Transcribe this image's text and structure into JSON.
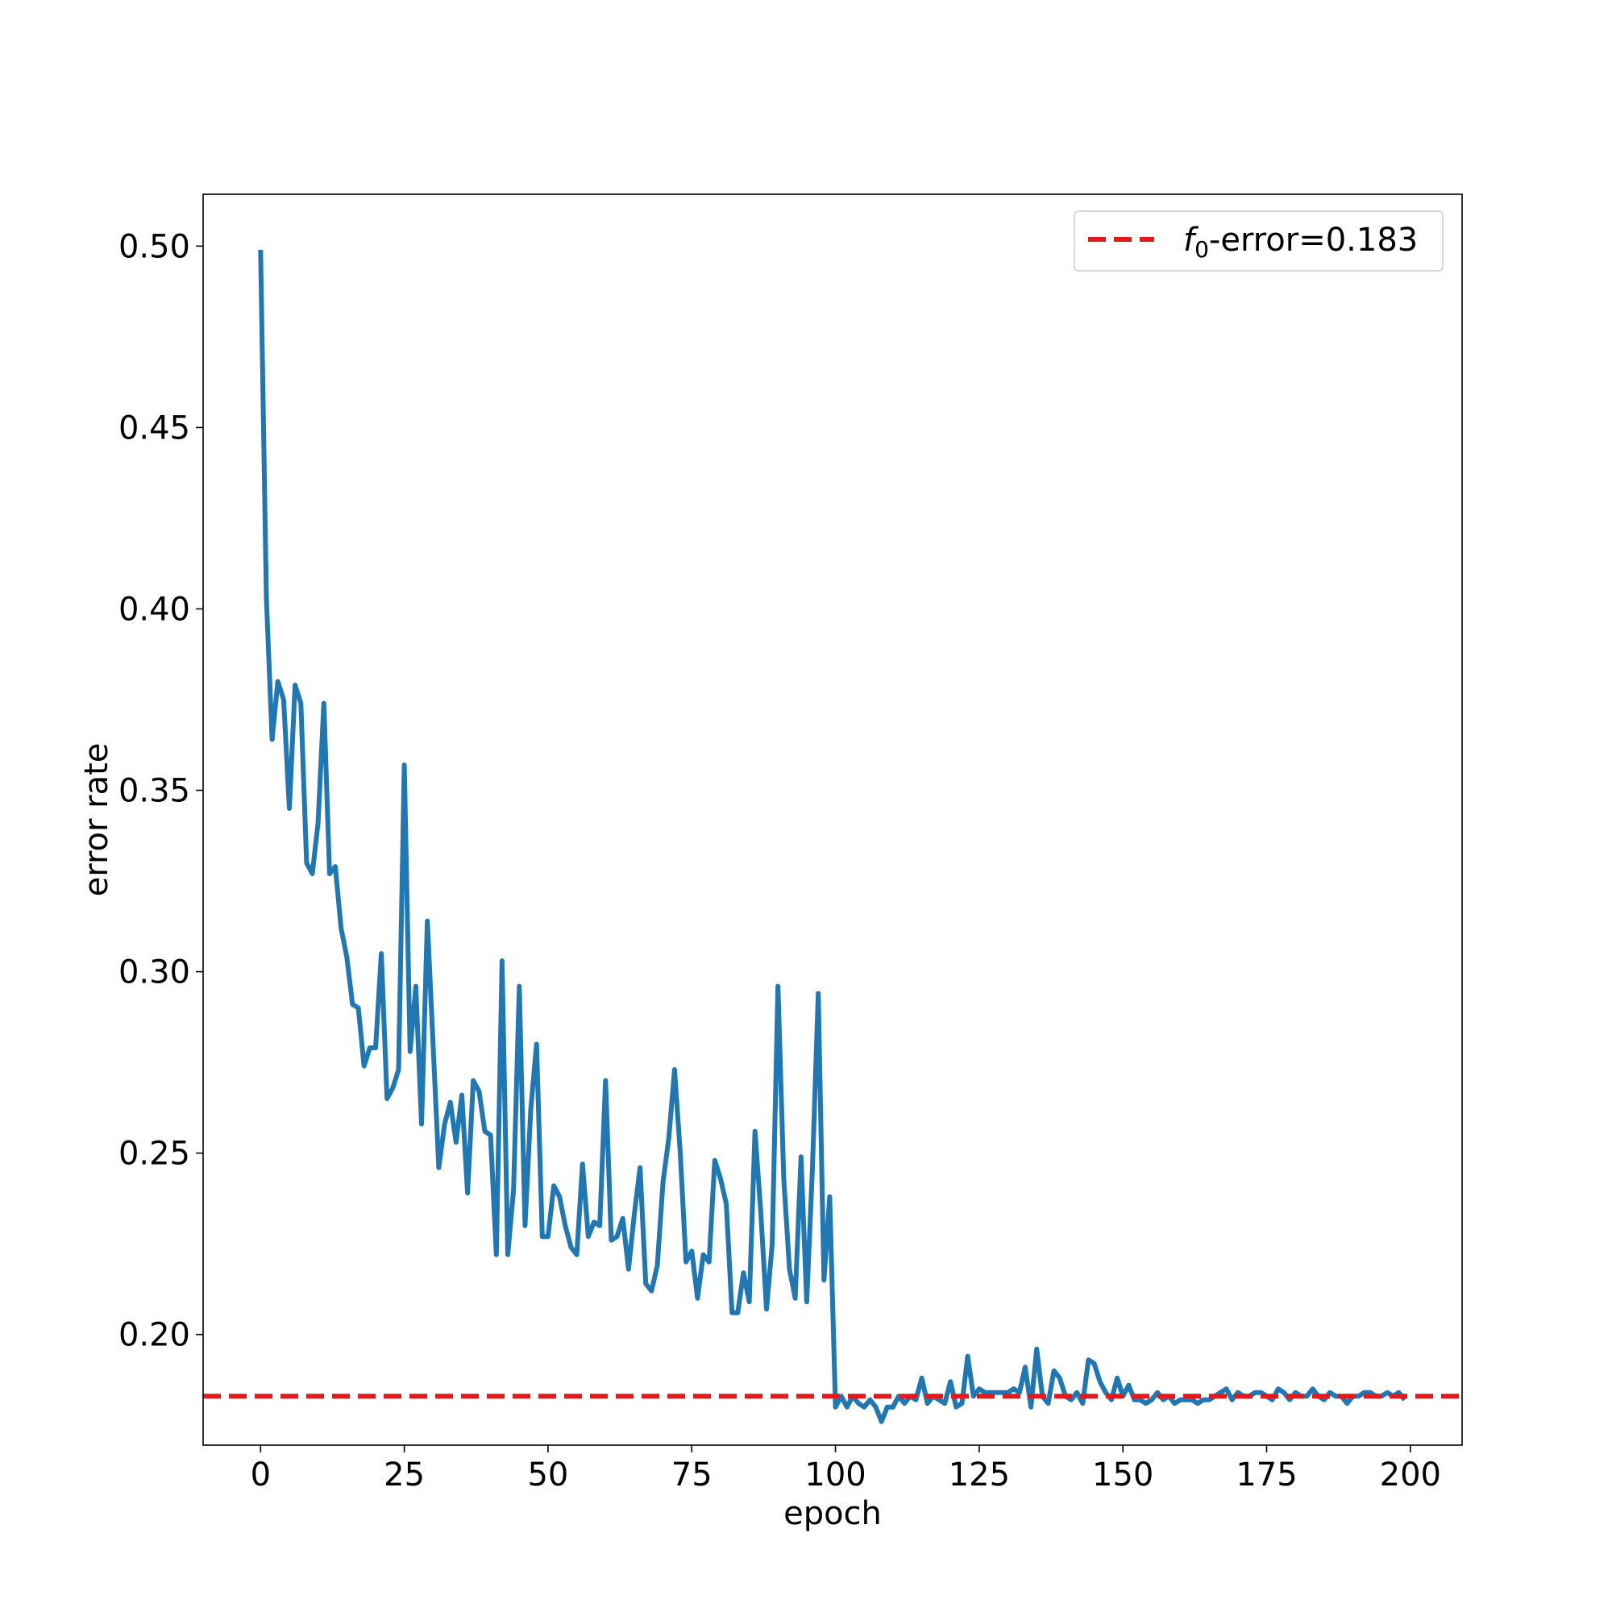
{
  "chart_data": {
    "type": "line",
    "title": "",
    "xlabel": "epoch",
    "ylabel": "error rate",
    "xlim": [
      -10,
      209
    ],
    "ylim": [
      0.1695,
      0.5143
    ],
    "xticks": [
      0,
      25,
      50,
      75,
      100,
      125,
      150,
      175,
      200
    ],
    "yticks": [
      0.2,
      0.25,
      0.3,
      0.35,
      0.4,
      0.45,
      0.5
    ],
    "ytick_format": 2,
    "grid": false,
    "legend_position": "top-right",
    "series": [
      {
        "name": "",
        "color": "#1f77b4",
        "style": "solid",
        "x": [
          0,
          1,
          2,
          3,
          4,
          5,
          6,
          7,
          8,
          9,
          10,
          11,
          12,
          13,
          14,
          15,
          16,
          17,
          18,
          19,
          20,
          21,
          22,
          23,
          24,
          25,
          26,
          27,
          28,
          29,
          30,
          31,
          32,
          33,
          34,
          35,
          36,
          37,
          38,
          39,
          40,
          41,
          42,
          43,
          44,
          45,
          46,
          47,
          48,
          49,
          50,
          51,
          52,
          53,
          54,
          55,
          56,
          57,
          58,
          59,
          60,
          61,
          62,
          63,
          64,
          65,
          66,
          67,
          68,
          69,
          70,
          71,
          72,
          73,
          74,
          75,
          76,
          77,
          78,
          79,
          80,
          81,
          82,
          83,
          84,
          85,
          86,
          87,
          88,
          89,
          90,
          91,
          92,
          93,
          94,
          95,
          96,
          97,
          98,
          99,
          100,
          101,
          102,
          103,
          104,
          105,
          106,
          107,
          108,
          109,
          110,
          111,
          112,
          113,
          114,
          115,
          116,
          117,
          118,
          119,
          120,
          121,
          122,
          123,
          124,
          125,
          126,
          127,
          128,
          129,
          130,
          131,
          132,
          133,
          134,
          135,
          136,
          137,
          138,
          139,
          140,
          141,
          142,
          143,
          144,
          145,
          146,
          147,
          148,
          149,
          150,
          151,
          152,
          153,
          154,
          155,
          156,
          157,
          158,
          159,
          160,
          161,
          162,
          163,
          164,
          165,
          166,
          167,
          168,
          169,
          170,
          171,
          172,
          173,
          174,
          175,
          176,
          177,
          178,
          179,
          180,
          181,
          182,
          183,
          184,
          185,
          186,
          187,
          188,
          189,
          190,
          191,
          192,
          193,
          194,
          195,
          196,
          197,
          198,
          199
        ],
        "y": [
          0.499,
          0.403,
          0.364,
          0.38,
          0.375,
          0.345,
          0.379,
          0.374,
          0.33,
          0.327,
          0.341,
          0.374,
          0.327,
          0.329,
          0.312,
          0.304,
          0.291,
          0.29,
          0.274,
          0.279,
          0.279,
          0.305,
          0.265,
          0.268,
          0.273,
          0.357,
          0.278,
          0.296,
          0.258,
          0.314,
          0.28,
          0.246,
          0.258,
          0.264,
          0.253,
          0.266,
          0.239,
          0.27,
          0.267,
          0.256,
          0.255,
          0.222,
          0.303,
          0.222,
          0.24,
          0.296,
          0.23,
          0.262,
          0.28,
          0.227,
          0.227,
          0.241,
          0.238,
          0.23,
          0.224,
          0.222,
          0.247,
          0.227,
          0.231,
          0.23,
          0.27,
          0.226,
          0.227,
          0.232,
          0.218,
          0.233,
          0.246,
          0.214,
          0.212,
          0.219,
          0.242,
          0.254,
          0.273,
          0.25,
          0.22,
          0.223,
          0.21,
          0.222,
          0.22,
          0.248,
          0.243,
          0.236,
          0.206,
          0.206,
          0.217,
          0.209,
          0.256,
          0.234,
          0.207,
          0.225,
          0.296,
          0.243,
          0.218,
          0.21,
          0.249,
          0.209,
          0.246,
          0.294,
          0.215,
          0.238,
          0.18,
          0.183,
          0.18,
          0.183,
          0.181,
          0.18,
          0.182,
          0.18,
          0.176,
          0.18,
          0.18,
          0.183,
          0.181,
          0.183,
          0.182,
          0.188,
          0.181,
          0.183,
          0.182,
          0.181,
          0.187,
          0.18,
          0.181,
          0.194,
          0.183,
          0.185,
          0.184,
          0.184,
          0.184,
          0.184,
          0.184,
          0.185,
          0.184,
          0.191,
          0.18,
          0.196,
          0.183,
          0.181,
          0.19,
          0.188,
          0.183,
          0.182,
          0.184,
          0.181,
          0.193,
          0.192,
          0.187,
          0.184,
          0.182,
          0.188,
          0.183,
          0.186,
          0.182,
          0.182,
          0.181,
          0.182,
          0.184,
          0.182,
          0.183,
          0.181,
          0.182,
          0.182,
          0.182,
          0.181,
          0.182,
          0.182,
          0.183,
          0.184,
          0.185,
          0.182,
          0.184,
          0.183,
          0.183,
          0.184,
          0.184,
          0.183,
          0.182,
          0.185,
          0.184,
          0.182,
          0.184,
          0.183,
          0.183,
          0.185,
          0.183,
          0.182,
          0.184,
          0.183,
          0.183,
          0.181,
          0.183,
          0.183,
          0.184,
          0.184,
          0.183,
          0.183,
          0.184,
          0.183,
          0.184,
          0.182
        ]
      },
      {
        "name": "$f_0$-error=0.183",
        "legend_main": "f",
        "legend_sub": "0",
        "legend_rest": "-error=0.183",
        "color": "#e31a1c",
        "style": "dashed",
        "y": 0.183
      }
    ]
  }
}
